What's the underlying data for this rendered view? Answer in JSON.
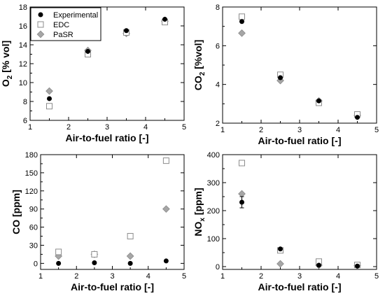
{
  "colors": {
    "experimental": "#000000",
    "edc_stroke": "#8c8c8c",
    "pasr_fill": "#a6a6a6",
    "pasr_stroke": "#8a8a8a"
  },
  "legend": {
    "items": [
      {
        "name": "Experimental",
        "marker": "circle"
      },
      {
        "name": "EDC",
        "marker": "square"
      },
      {
        "name": "PaSR",
        "marker": "diamond"
      }
    ]
  },
  "chart_data": [
    {
      "type": "scatter",
      "xlabel": "Air-to-fuel ratio [-]",
      "ylabel_main": "O",
      "ylabel_sub": "2",
      "ylabel_rest": " [% vol]",
      "xlim": [
        1,
        5
      ],
      "ylim": [
        6,
        18
      ],
      "xticks": [
        1,
        2,
        3,
        4,
        5
      ],
      "yticks": [
        6,
        8,
        10,
        12,
        14,
        16,
        18
      ],
      "legend_position": "top-left",
      "series": [
        {
          "name": "Experimental",
          "x": [
            1.5,
            2.5,
            3.5,
            4.5
          ],
          "y": [
            8.3,
            13.3,
            15.5,
            16.7
          ]
        },
        {
          "name": "EDC",
          "x": [
            1.5,
            2.5,
            3.5,
            4.5
          ],
          "y": [
            7.5,
            13.0,
            15.3,
            16.4
          ]
        },
        {
          "name": "PaSR",
          "x": [
            1.5,
            2.5,
            3.5,
            4.5
          ],
          "y": [
            9.1,
            13.4,
            15.2,
            16.5
          ]
        }
      ]
    },
    {
      "type": "scatter",
      "xlabel": "Air-to-fuel ratio [-]",
      "ylabel_main": "CO",
      "ylabel_sub": "2",
      "ylabel_rest": " [%vol]",
      "xlim": [
        1,
        5
      ],
      "ylim": [
        2,
        8
      ],
      "xticks": [
        1,
        2,
        3,
        4,
        5
      ],
      "yticks": [
        2,
        4,
        6,
        8
      ],
      "series": [
        {
          "name": "Experimental",
          "x": [
            1.5,
            2.5,
            3.5,
            4.5
          ],
          "y": [
            7.25,
            4.35,
            3.15,
            2.3
          ]
        },
        {
          "name": "EDC",
          "x": [
            1.5,
            2.5,
            3.5,
            4.5
          ],
          "y": [
            7.5,
            4.5,
            3.05,
            2.45
          ]
        },
        {
          "name": "PaSR",
          "x": [
            1.5,
            2.5,
            3.5,
            4.5
          ],
          "y": [
            6.65,
            4.2,
            3.15,
            2.4
          ]
        }
      ]
    },
    {
      "type": "scatter",
      "xlabel": "Air-to-fuel ratio [-]",
      "ylabel_main": "CO [ppm]",
      "ylabel_sub": "",
      "ylabel_rest": "",
      "xlim": [
        1,
        5
      ],
      "ylim": [
        -10,
        180
      ],
      "xticks": [
        1,
        2,
        3,
        4,
        5
      ],
      "yticks": [
        0,
        30,
        60,
        90,
        120,
        150,
        180
      ],
      "series": [
        {
          "name": "Experimental",
          "x": [
            1.5,
            2.5,
            3.5,
            4.5
          ],
          "y": [
            0,
            1,
            0,
            4
          ]
        },
        {
          "name": "EDC",
          "x": [
            1.5,
            2.5,
            3.5,
            4.5
          ],
          "y": [
            19,
            15,
            45,
            170
          ]
        },
        {
          "name": "PaSR",
          "x": [
            1.5,
            2.5,
            3.5,
            4.5
          ],
          "y": [
            12,
            15,
            12,
            90
          ]
        }
      ]
    },
    {
      "type": "scatter",
      "xlabel": "Air-to-fuel ratio [-]",
      "ylabel_main": "NO",
      "ylabel_sub": "x",
      "ylabel_rest": " [ppm]",
      "xlim": [
        1,
        5
      ],
      "ylim": [
        -10,
        400
      ],
      "xticks": [
        1,
        2,
        3,
        4,
        5
      ],
      "yticks": [
        0,
        100,
        200,
        300,
        400
      ],
      "series": [
        {
          "name": "Experimental",
          "x": [
            1.5,
            2.5,
            3.5,
            4.5
          ],
          "y": [
            230,
            63,
            5,
            2
          ],
          "err": [
            20,
            0,
            0,
            0
          ]
        },
        {
          "name": "EDC",
          "x": [
            1.5,
            2.5,
            3.5,
            4.5
          ],
          "y": [
            370,
            58,
            18,
            6
          ]
        },
        {
          "name": "PaSR",
          "x": [
            1.5,
            2.5,
            3.5,
            4.5
          ],
          "y": [
            260,
            10,
            5,
            3
          ]
        }
      ]
    }
  ]
}
